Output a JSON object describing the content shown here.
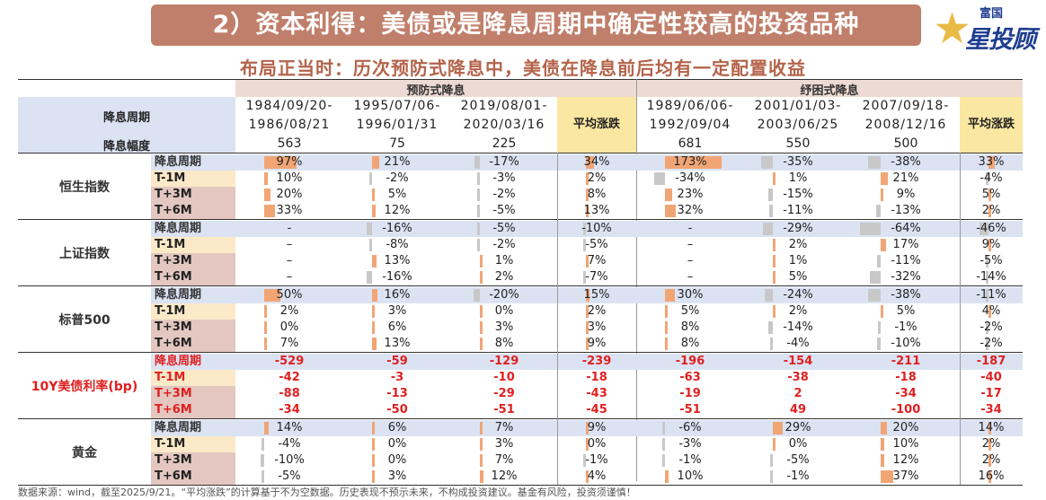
{
  "banner": "2）资本利得：美债或是降息周期中确定性较高的投资品种",
  "logo": {
    "small": "富国",
    "big": "星投顾"
  },
  "subtitle": "布局正当时：历次预防式降息中，美债在降息前后均有一定配置收益",
  "table": {
    "groups": [
      "预防式降息",
      "纾困式降息"
    ],
    "period_label": "降息周期",
    "magnitude_label": "降息幅度",
    "avg_label": "平均涨跌",
    "periods": [
      [
        "1984/09/20-",
        "1986/08/21"
      ],
      [
        "1995/07/06-",
        "1996/01/31"
      ],
      [
        "2019/08/01-",
        "2020/03/16"
      ],
      [
        "1989/06/06-",
        "1992/09/04"
      ],
      [
        "2001/01/03-",
        "2003/06/25"
      ],
      [
        "2007/09/18-",
        "2008/12/16"
      ]
    ],
    "magnitudes": [
      "563",
      "75",
      "225",
      "681",
      "550",
      "500"
    ],
    "sub_labels": [
      "降息周期",
      "T-1M",
      "T+3M",
      "T+6M"
    ],
    "assets": [
      {
        "name": "恒生指数",
        "rows": [
          [
            "97%",
            "21%",
            "-17%",
            "34%",
            "173%",
            "-35%",
            "-38%",
            "33%"
          ],
          [
            "10%",
            "-2%",
            "-3%",
            "2%",
            "-34%",
            "1%",
            "21%",
            "-4%"
          ],
          [
            "20%",
            "5%",
            "-2%",
            "8%",
            "23%",
            "-15%",
            "9%",
            "5%"
          ],
          [
            "33%",
            "12%",
            "-5%",
            "13%",
            "32%",
            "-11%",
            "-13%",
            "2%"
          ]
        ]
      },
      {
        "name": "上证指数",
        "rows": [
          [
            "-",
            "-16%",
            "-5%",
            "-10%",
            "-",
            "-29%",
            "-64%",
            "-46%"
          ],
          [
            "–",
            "-8%",
            "-2%",
            "-5%",
            "–",
            "2%",
            "17%",
            "9%"
          ],
          [
            "–",
            "13%",
            "1%",
            "7%",
            "–",
            "1%",
            "-11%",
            "-5%"
          ],
          [
            "–",
            "-16%",
            "2%",
            "-7%",
            "–",
            "5%",
            "-32%",
            "-14%"
          ]
        ]
      },
      {
        "name": "标普500",
        "rows": [
          [
            "50%",
            "16%",
            "-20%",
            "15%",
            "30%",
            "-24%",
            "-38%",
            "-11%"
          ],
          [
            "2%",
            "3%",
            "0%",
            "2%",
            "5%",
            "2%",
            "5%",
            "4%"
          ],
          [
            "0%",
            "6%",
            "3%",
            "3%",
            "8%",
            "-14%",
            "-1%",
            "-2%"
          ],
          [
            "7%",
            "13%",
            "8%",
            "9%",
            "8%",
            "-4%",
            "-10%",
            "-2%"
          ]
        ]
      },
      {
        "name": "10Y美债利率(bp)",
        "rows": [
          [
            "-529",
            "-59",
            "-129",
            "-239",
            "-196",
            "-154",
            "-211",
            "-187"
          ],
          [
            "-42",
            "-3",
            "-10",
            "-18",
            "-63",
            "-38",
            "-18",
            "-40"
          ],
          [
            "-88",
            "-13",
            "-29",
            "-43",
            "-19",
            "2",
            "-34",
            "-17"
          ],
          [
            "-34",
            "-50",
            "-51",
            "-45",
            "-51",
            "49",
            "-100",
            "-34"
          ]
        ]
      },
      {
        "name": "黄金",
        "rows": [
          [
            "14%",
            "6%",
            "7%",
            "9%",
            "-6%",
            "29%",
            "20%",
            "14%"
          ],
          [
            "-4%",
            "0%",
            "3%",
            "0%",
            "-3%",
            "0%",
            "10%",
            "2%"
          ],
          [
            "-10%",
            "0%",
            "7%",
            "-1%",
            "-1%",
            "-5%",
            "12%",
            "2%"
          ],
          [
            "-5%",
            "3%",
            "12%",
            "4%",
            "10%",
            "-1%",
            "37%",
            "16%"
          ]
        ]
      }
    ]
  },
  "colors": {
    "banner": "#c07f6b",
    "subtitle": "#b4634a",
    "bond_red": "#e02020",
    "group_bg": "#eddbd3",
    "header_bg": "#dbe3f3",
    "avg_bg": "#fae7a1",
    "bar_positive": "#f1a575",
    "bar_negative": "#c8c8c8"
  },
  "footnote": "数据来源：wind，截至2025/9/21。“平均涨跌”的计算基于不为空数据。历史表现不预示未来，不构成投资建议。基金有风险，投资须谨慎！"
}
